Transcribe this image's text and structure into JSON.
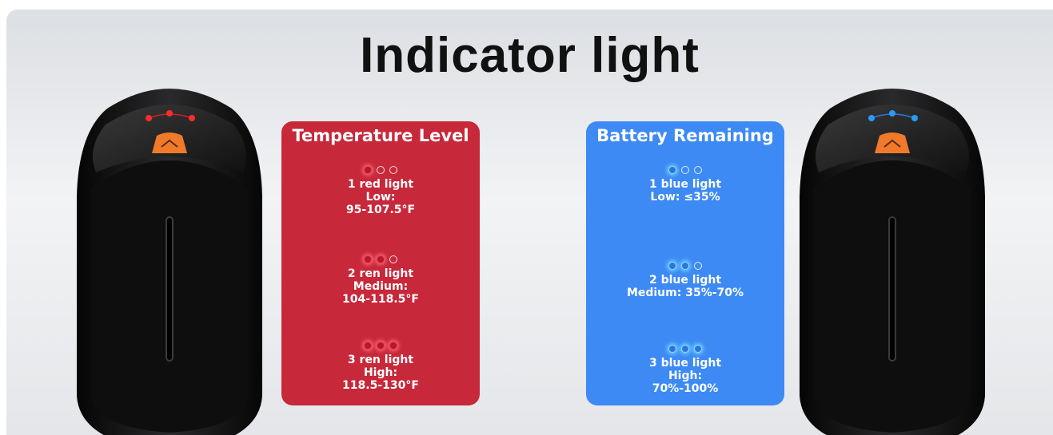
{
  "title": "Indicator light",
  "panels": [
    {
      "heading": "Temperature Level",
      "items": [
        {
          "lines": [
            "1 red light",
            "Low:",
            "95-107.5°F"
          ]
        },
        {
          "lines": [
            "2 ren light",
            "Medium:",
            "104-118.5°F"
          ]
        },
        {
          "lines": [
            "3 ren light",
            "High:",
            "118.5-130°F"
          ]
        }
      ]
    },
    {
      "heading": "Battery Remaining",
      "items": [
        {
          "lines": [
            "1 blue light",
            "Low: ≤35%"
          ]
        },
        {
          "lines": [
            "2 blue light",
            "Medium: 35%-70%"
          ]
        },
        {
          "lines": [
            "3 blue light",
            "High:",
            "70%-100%"
          ]
        }
      ]
    }
  ]
}
